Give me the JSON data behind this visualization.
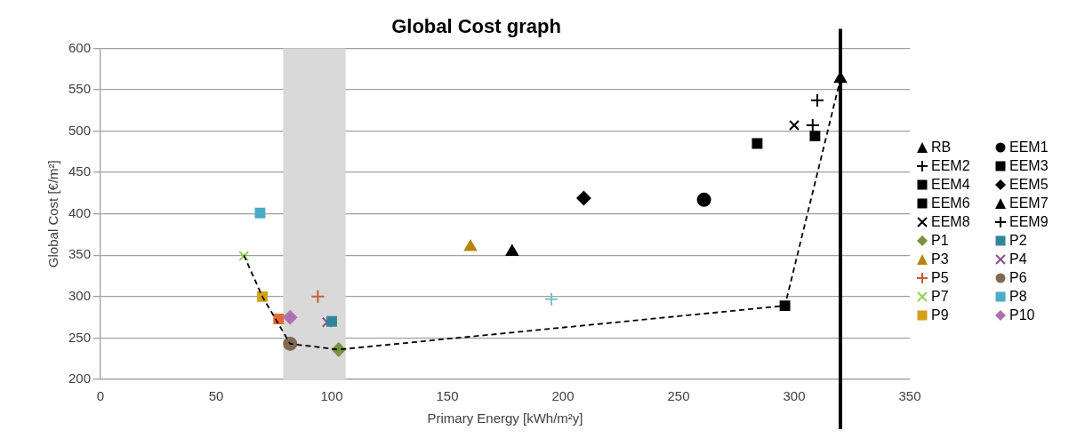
{
  "chart_data": {
    "type": "scatter",
    "title": "Global Cost graph",
    "xlabel": "Primary Energy [kWh/m²y]",
    "ylabel": "Global Cost [€/m²]",
    "xlim": [
      0,
      350
    ],
    "xticks": [
      0,
      50,
      100,
      150,
      200,
      250,
      300,
      350
    ],
    "ylim": [
      200,
      600
    ],
    "yticks": [
      200,
      250,
      300,
      350,
      400,
      450,
      500,
      550,
      600
    ],
    "grid": "y",
    "legend": "right",
    "ref_lines": [
      {
        "axis": "x",
        "value": 320,
        "color": "#000000"
      }
    ],
    "bands": [
      {
        "axis": "x",
        "from": 79,
        "to": 106,
        "color": "#d9d9d9"
      }
    ],
    "series": [
      {
        "type": "line",
        "color": "#000000",
        "line_style": "dashed",
        "marker": "none",
        "x": [
          62,
          70,
          82,
          103,
          296,
          320
        ],
        "values": [
          350,
          300,
          243,
          236,
          289,
          563
        ]
      },
      {
        "name": "RB",
        "color": "#000000",
        "marker": "triangle",
        "x": [
          320
        ],
        "values": [
          563
        ]
      },
      {
        "name": "EEM1",
        "color": "#000000",
        "marker": "circle",
        "x": [
          261
        ],
        "values": [
          417
        ]
      },
      {
        "name": "EEM2",
        "color": "#000000",
        "marker": "cross",
        "x": [
          308
        ],
        "values": [
          507
        ]
      },
      {
        "name": "EEM3",
        "color": "#000000",
        "marker": "square",
        "x": [
          309
        ],
        "values": [
          494
        ]
      },
      {
        "name": "EEM4",
        "color": "#000000",
        "marker": "square",
        "x": [
          284
        ],
        "values": [
          485
        ]
      },
      {
        "name": "EEM5",
        "color": "#000000",
        "marker": "diamond",
        "x": [
          209
        ],
        "values": [
          419
        ]
      },
      {
        "name": "EEM6",
        "color": "#000000",
        "marker": "square",
        "x": [
          296
        ],
        "values": [
          289
        ]
      },
      {
        "name": "EEM7",
        "color": "#000000",
        "marker": "triangle",
        "x": [
          178
        ],
        "values": [
          354
        ]
      },
      {
        "name": "EEM8",
        "color": "#000000",
        "marker": "x",
        "x": [
          300
        ],
        "values": [
          507
        ]
      },
      {
        "name": "EEM9",
        "color": "#000000",
        "marker": "cross",
        "x": [
          310
        ],
        "values": [
          537
        ]
      },
      {
        "name": "P1",
        "color": "#77933c",
        "marker": "diamond",
        "x": [
          103
        ],
        "values": [
          236
        ]
      },
      {
        "name": "P2",
        "color": "#31859c",
        "marker": "square",
        "x": [
          100
        ],
        "values": [
          270
        ]
      },
      {
        "name": "P3",
        "color": "#b8860b",
        "marker": "triangle",
        "x": [
          160
        ],
        "values": [
          360
        ]
      },
      {
        "name": "P4",
        "color": "#8e4f8e",
        "marker": "x",
        "x": [
          98
        ],
        "values": [
          269
        ]
      },
      {
        "name": "P5",
        "color": "#c0603a",
        "marker": "cross",
        "x": [
          94
        ],
        "values": [
          300
        ]
      },
      {
        "name": "P6",
        "color": "#7f6a50",
        "marker": "circle",
        "x": [
          82
        ],
        "values": [
          243
        ]
      },
      {
        "name": "P7",
        "color": "#92d050",
        "marker": "x",
        "x": [
          62
        ],
        "values": [
          349
        ]
      },
      {
        "name": "P8",
        "color": "#4bacc6",
        "marker": "square",
        "x": [
          69
        ],
        "values": [
          401
        ]
      },
      {
        "name": "P9",
        "color": "#d4a017",
        "marker": "square",
        "x": [
          70
        ],
        "values": [
          300
        ]
      },
      {
        "name": "P10",
        "color": "#b070b0",
        "marker": "diamond",
        "x": [
          82
        ],
        "values": [
          275
        ]
      },
      {
        "color": "#e46c34",
        "marker": "square",
        "x": [
          77
        ],
        "values": [
          273
        ]
      },
      {
        "color": "#7cc0c8",
        "marker": "cross",
        "x": [
          195
        ],
        "values": [
          297
        ]
      }
    ]
  }
}
